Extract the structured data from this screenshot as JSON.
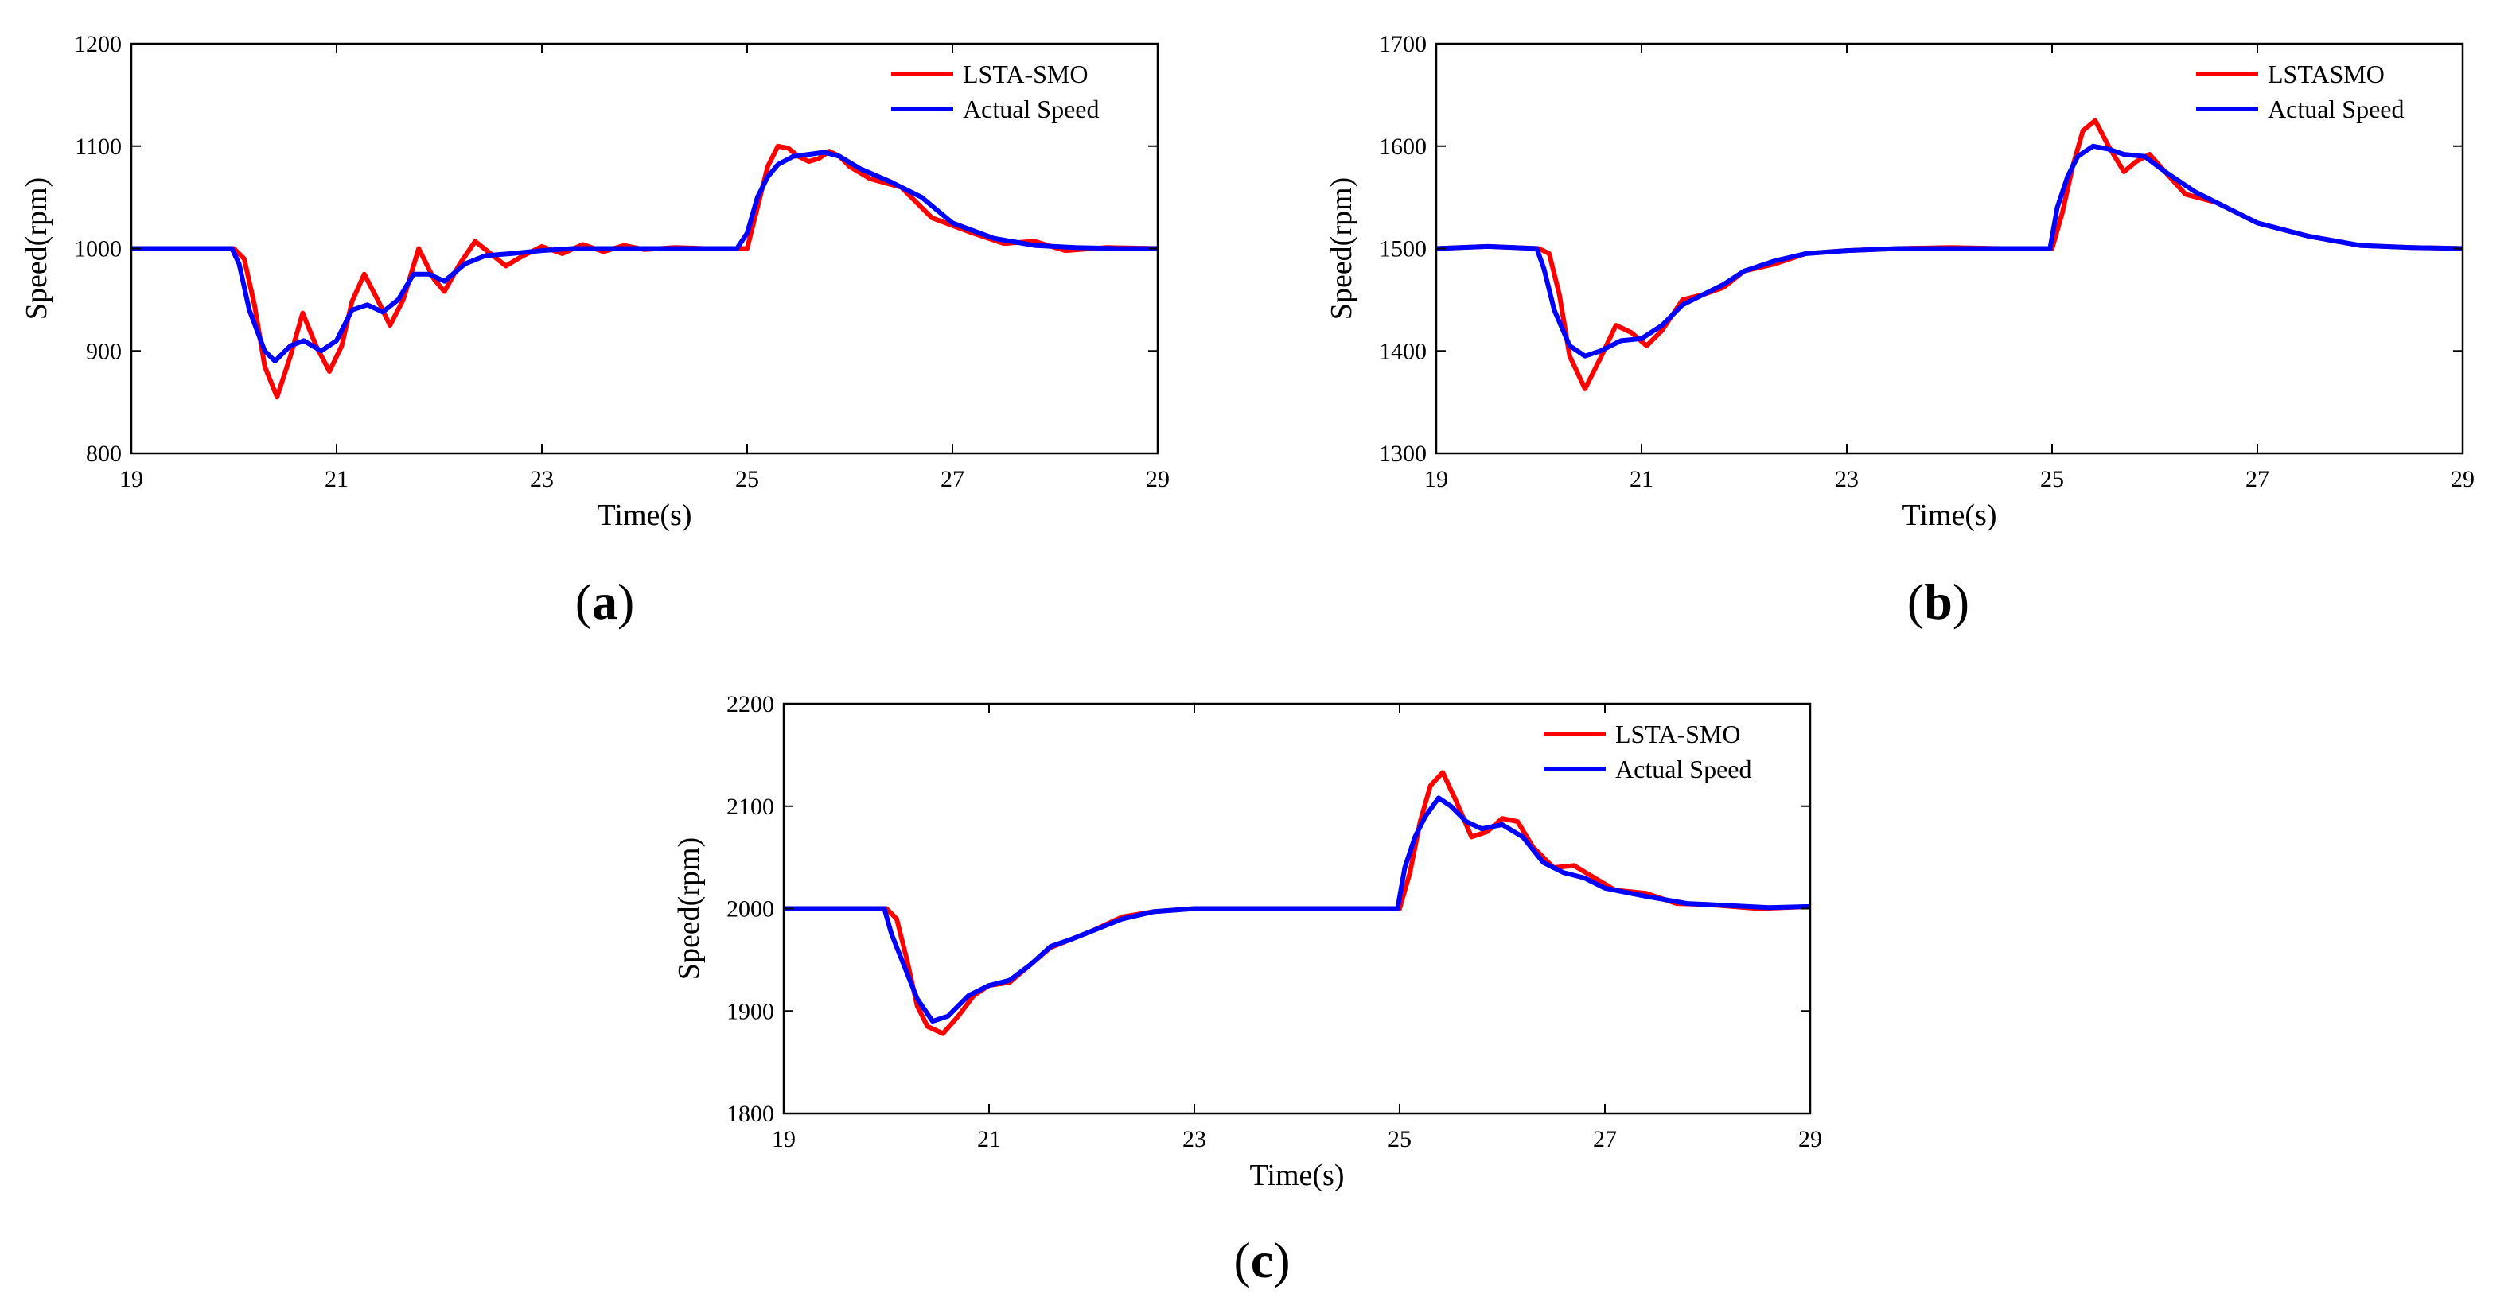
{
  "colors": {
    "estimate": "#ff0000",
    "actual": "#0000ff",
    "axis": "#000000"
  },
  "chart_data": [
    {
      "type": "line",
      "caption_open": "(",
      "caption_letter": "a",
      "caption_close": ")",
      "xlabel": "Time(s)",
      "ylabel": "Speed(rpm)",
      "xlim": [
        19,
        29
      ],
      "ylim": [
        800,
        1200
      ],
      "xticks": [
        19,
        21,
        23,
        25,
        27,
        29
      ],
      "yticks": [
        800,
        900,
        1000,
        1100,
        1200
      ],
      "legend": "top-right",
      "series": [
        {
          "name": "LSTA-SMO",
          "color": "#ff0000",
          "x": [
            19,
            20.0,
            20.1,
            20.2,
            20.3,
            20.42,
            20.55,
            20.67,
            20.8,
            20.93,
            21.05,
            21.15,
            21.27,
            21.4,
            21.52,
            21.65,
            21.8,
            21.95,
            22.05,
            22.2,
            22.35,
            22.5,
            22.65,
            22.8,
            23.0,
            23.2,
            23.4,
            23.6,
            23.8,
            24.0,
            24.3,
            24.6,
            24.85,
            25.0,
            25.1,
            25.2,
            25.3,
            25.4,
            25.5,
            25.6,
            25.7,
            25.8,
            25.9,
            26.0,
            26.2,
            26.5,
            26.8,
            27.2,
            27.5,
            27.8,
            28.1,
            28.5,
            29.0
          ],
          "values": [
            1000,
            1000,
            990,
            945,
            885,
            855,
            895,
            937,
            905,
            880,
            905,
            948,
            975,
            950,
            925,
            950,
            1000,
            970,
            958,
            985,
            1007,
            995,
            983,
            992,
            1002,
            995,
            1004,
            997,
            1003,
            999,
            1001,
            1000,
            1000,
            1000,
            1040,
            1080,
            1100,
            1098,
            1090,
            1085,
            1088,
            1095,
            1090,
            1080,
            1068,
            1060,
            1030,
            1015,
            1005,
            1007,
            998,
            1001,
            1000
          ]
        },
        {
          "name": "Actual Speed",
          "color": "#0000ff",
          "x": [
            19,
            19.98,
            20.05,
            20.15,
            20.3,
            20.4,
            20.55,
            20.68,
            20.85,
            21.0,
            21.15,
            21.3,
            21.45,
            21.6,
            21.75,
            21.9,
            22.05,
            22.25,
            22.45,
            22.7,
            23.0,
            23.3,
            23.6,
            24.0,
            24.5,
            24.9,
            25.0,
            25.1,
            25.2,
            25.3,
            25.45,
            25.6,
            25.75,
            25.9,
            26.1,
            26.4,
            26.7,
            27.0,
            27.4,
            27.8,
            28.2,
            28.6,
            29.0
          ],
          "values": [
            1000,
            1000,
            985,
            940,
            900,
            890,
            905,
            910,
            900,
            910,
            940,
            945,
            938,
            950,
            975,
            975,
            968,
            985,
            993,
            995,
            998,
            1000,
            1000,
            1000,
            1000,
            1000,
            1015,
            1050,
            1070,
            1082,
            1090,
            1092,
            1094,
            1090,
            1078,
            1065,
            1050,
            1025,
            1010,
            1003,
            1001,
            1000,
            1000
          ]
        }
      ]
    },
    {
      "type": "line",
      "caption_open": "(",
      "caption_letter": "b",
      "caption_close": ")",
      "xlabel": "Time(s)",
      "ylabel": "Speed(rpm)",
      "xlim": [
        19,
        29
      ],
      "ylim": [
        1300,
        1700
      ],
      "xticks": [
        19,
        21,
        23,
        25,
        27,
        29
      ],
      "yticks": [
        1300,
        1400,
        1500,
        1600,
        1700
      ],
      "legend": "top-right",
      "series": [
        {
          "name": "LSTASMO",
          "color": "#ff0000",
          "x": [
            19,
            19.5,
            20.0,
            20.1,
            20.2,
            20.3,
            20.45,
            20.6,
            20.75,
            20.9,
            21.05,
            21.2,
            21.4,
            21.6,
            21.8,
            22.0,
            22.3,
            22.6,
            23.0,
            23.5,
            24.0,
            24.5,
            25.0,
            25.1,
            25.2,
            25.3,
            25.42,
            25.55,
            25.7,
            25.82,
            25.95,
            26.1,
            26.3,
            26.6,
            27.0,
            27.5,
            28.0,
            28.5,
            29.0
          ],
          "values": [
            1500,
            1502,
            1500,
            1495,
            1455,
            1395,
            1363,
            1393,
            1425,
            1418,
            1405,
            1420,
            1450,
            1455,
            1462,
            1478,
            1485,
            1495,
            1498,
            1500,
            1501,
            1500,
            1500,
            1535,
            1580,
            1615,
            1625,
            1600,
            1575,
            1585,
            1592,
            1575,
            1553,
            1545,
            1525,
            1512,
            1503,
            1501,
            1500
          ]
        },
        {
          "name": "Actual Speed",
          "color": "#0000ff",
          "x": [
            19,
            19.5,
            19.98,
            20.05,
            20.15,
            20.3,
            20.45,
            20.6,
            20.8,
            21.0,
            21.2,
            21.4,
            21.6,
            21.8,
            22.0,
            22.3,
            22.6,
            23.0,
            23.5,
            24.0,
            24.5,
            24.98,
            25.05,
            25.15,
            25.25,
            25.4,
            25.55,
            25.7,
            25.9,
            26.1,
            26.4,
            26.7,
            27.0,
            27.5,
            28.0,
            28.5,
            29.0
          ],
          "values": [
            1500,
            1502,
            1500,
            1480,
            1440,
            1405,
            1395,
            1400,
            1410,
            1412,
            1425,
            1445,
            1455,
            1465,
            1478,
            1488,
            1495,
            1498,
            1500,
            1500,
            1500,
            1500,
            1540,
            1570,
            1590,
            1600,
            1597,
            1592,
            1590,
            1575,
            1555,
            1540,
            1525,
            1512,
            1503,
            1501,
            1500
          ]
        }
      ]
    },
    {
      "type": "line",
      "caption_open": "(",
      "caption_letter": "c",
      "caption_close": ")",
      "xlabel": "Time(s)",
      "ylabel": "Speed(rpm)",
      "xlim": [
        19,
        29
      ],
      "ylim": [
        1800,
        2200
      ],
      "xticks": [
        19,
        21,
        23,
        25,
        27,
        29
      ],
      "yticks": [
        1800,
        1900,
        2000,
        2100,
        2200
      ],
      "legend": "top-right",
      "series": [
        {
          "name": "LSTA-SMO",
          "color": "#ff0000",
          "x": [
            19,
            19.5,
            20.0,
            20.1,
            20.2,
            20.3,
            20.4,
            20.55,
            20.7,
            20.85,
            21.0,
            21.2,
            21.4,
            21.6,
            21.8,
            22.0,
            22.3,
            22.6,
            23.0,
            23.5,
            24.0,
            24.5,
            25.0,
            25.1,
            25.2,
            25.3,
            25.42,
            25.55,
            25.7,
            25.85,
            26.0,
            26.15,
            26.3,
            26.5,
            26.7,
            26.9,
            27.1,
            27.4,
            27.7,
            28.0,
            28.5,
            29.0
          ],
          "values": [
            2000,
            2000,
            2000,
            1990,
            1950,
            1905,
            1885,
            1878,
            1895,
            1915,
            1925,
            1928,
            1945,
            1962,
            1970,
            1978,
            1992,
            1997,
            2000,
            2000,
            2000,
            2000,
            2000,
            2035,
            2085,
            2120,
            2133,
            2105,
            2070,
            2075,
            2088,
            2085,
            2060,
            2040,
            2042,
            2030,
            2018,
            2015,
            2005,
            2004,
            2000,
            2002
          ]
        },
        {
          "name": "Actual Speed",
          "color": "#0000ff",
          "x": [
            19,
            19.5,
            19.98,
            20.05,
            20.15,
            20.3,
            20.45,
            20.6,
            20.8,
            21.0,
            21.2,
            21.4,
            21.6,
            21.8,
            22.0,
            22.3,
            22.6,
            23.0,
            23.5,
            24.0,
            24.5,
            24.98,
            25.05,
            25.15,
            25.25,
            25.38,
            25.5,
            25.65,
            25.8,
            26.0,
            26.2,
            26.4,
            26.6,
            26.8,
            27.0,
            27.4,
            27.8,
            28.2,
            28.6,
            29.0
          ],
          "values": [
            2000,
            2000,
            2000,
            1975,
            1950,
            1912,
            1890,
            1895,
            1915,
            1925,
            1930,
            1945,
            1963,
            1970,
            1978,
            1990,
            1997,
            2000,
            2000,
            2000,
            2000,
            2000,
            2040,
            2070,
            2090,
            2108,
            2100,
            2085,
            2078,
            2082,
            2070,
            2045,
            2035,
            2030,
            2020,
            2012,
            2005,
            2003,
            2001,
            2002
          ]
        }
      ]
    }
  ]
}
